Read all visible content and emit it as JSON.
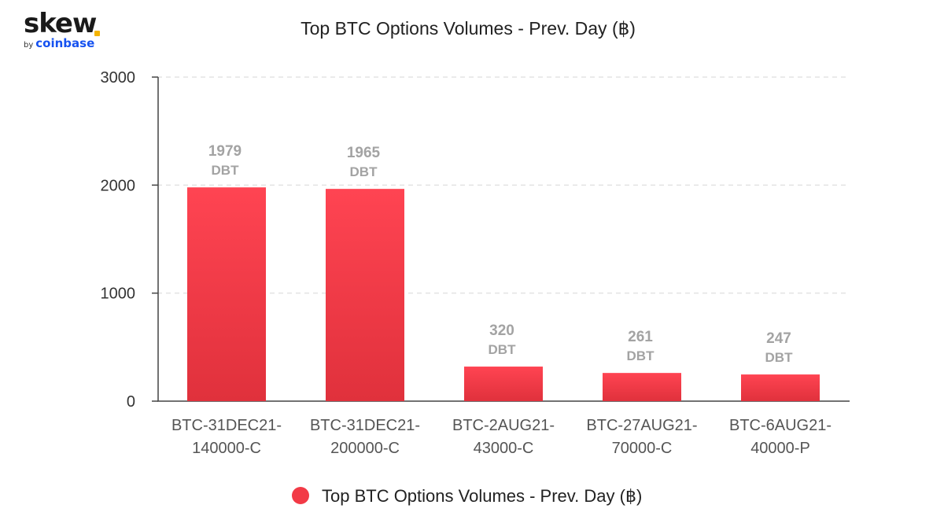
{
  "logo": {
    "wordmark": "skew",
    "by": "by",
    "brand": "coinbase"
  },
  "chart_data": {
    "type": "bar",
    "title": "Top BTC Options Volumes - Prev. Day (฿)",
    "categories": [
      [
        "BTC-31DEC21-",
        "140000-C"
      ],
      [
        "BTC-31DEC21-",
        "200000-C"
      ],
      [
        "BTC-2AUG21-",
        "43000-C"
      ],
      [
        "BTC-27AUG21-",
        "70000-C"
      ],
      [
        "BTC-6AUG21-",
        "40000-P"
      ]
    ],
    "series": [
      {
        "name": "Top BTC Options Volumes - Prev. Day (฿)",
        "values": [
          1979,
          1965,
          320,
          261,
          247
        ],
        "unit_label": "DBT"
      }
    ],
    "yticks": [
      0,
      1000,
      2000,
      3000
    ],
    "ylim": [
      0,
      3000
    ],
    "grid": true,
    "legend_position": "bottom-center",
    "colors": {
      "bar_top": "#ff4452",
      "bar_bottom": "#e0313c",
      "legend_marker": "#f23a46"
    }
  }
}
